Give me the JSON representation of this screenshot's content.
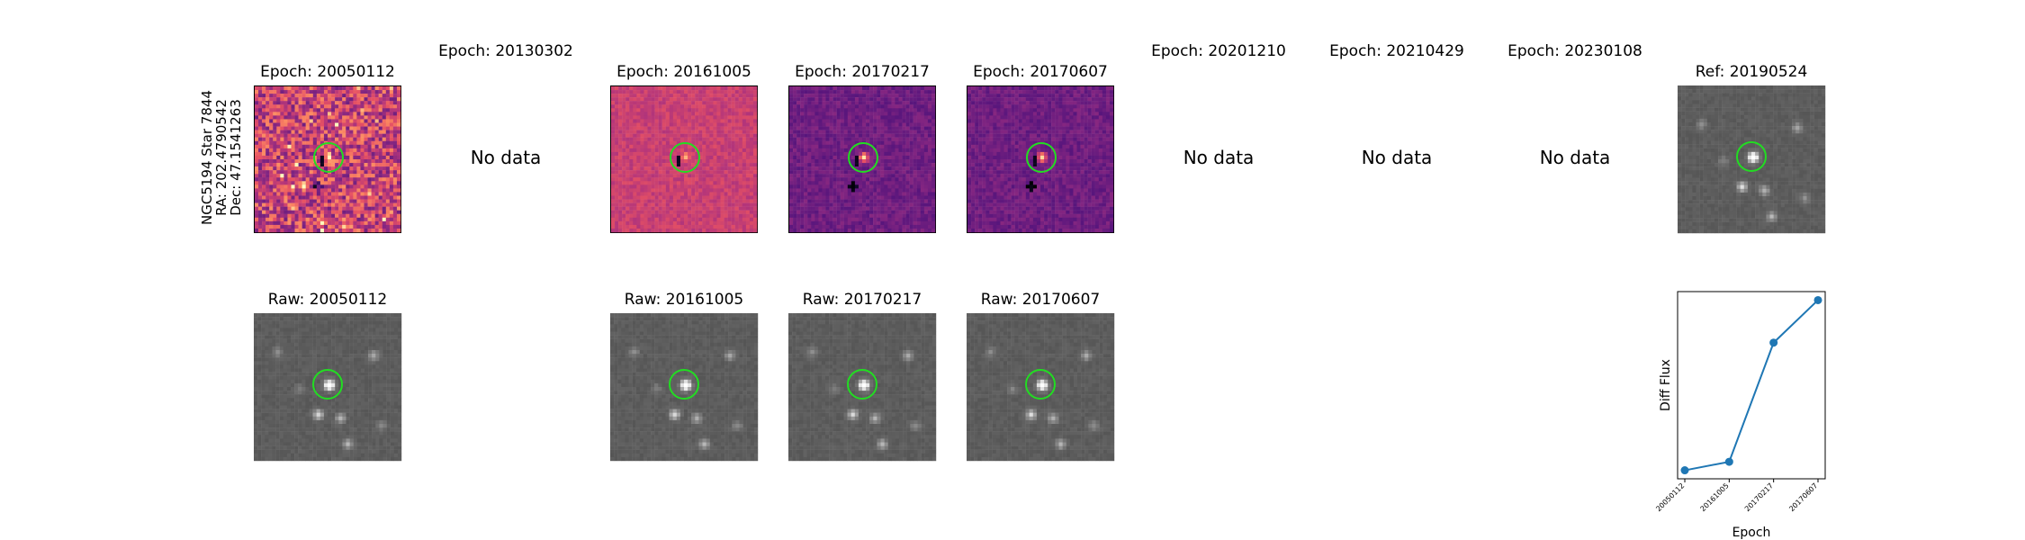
{
  "target": {
    "name": "NGC5194 Star 7844",
    "ra": "RA: 202.4790542",
    "dec": "Dec: 47.1541263"
  },
  "top_row": [
    {
      "title": "Epoch: 20050112",
      "has_data": true,
      "style": "magma-noisy"
    },
    {
      "title": "Epoch: 20130302",
      "has_data": false,
      "nodata": "No data"
    },
    {
      "title": "Epoch: 20161005",
      "has_data": true,
      "style": "magma-pink"
    },
    {
      "title": "Epoch: 20170217",
      "has_data": true,
      "style": "magma-purple"
    },
    {
      "title": "Epoch: 20170607",
      "has_data": true,
      "style": "magma-purple"
    },
    {
      "title": "Epoch: 20201210",
      "has_data": false,
      "nodata": "No data"
    },
    {
      "title": "Epoch: 20210429",
      "has_data": false,
      "nodata": "No data"
    },
    {
      "title": "Epoch: 20230108",
      "has_data": false,
      "nodata": "No data"
    },
    {
      "title": "Ref: 20190524",
      "has_data": true,
      "style": "gray"
    }
  ],
  "bottom_row": [
    {
      "title": "Raw: 20050112"
    },
    {
      "title": "Raw: 20161005"
    },
    {
      "title": "Raw: 20170217"
    },
    {
      "title": "Raw: 20170607"
    }
  ],
  "colors": {
    "ring": "#22dd22",
    "line": "#1f77b4"
  },
  "chart_data": {
    "type": "line",
    "x": [
      "20050112",
      "20161005",
      "20170217",
      "20170607"
    ],
    "y": [
      1.0,
      1.4,
      7.0,
      9.0
    ],
    "xlabel": "Epoch",
    "ylabel": "Diff Flux",
    "yticks_shown": false
  }
}
